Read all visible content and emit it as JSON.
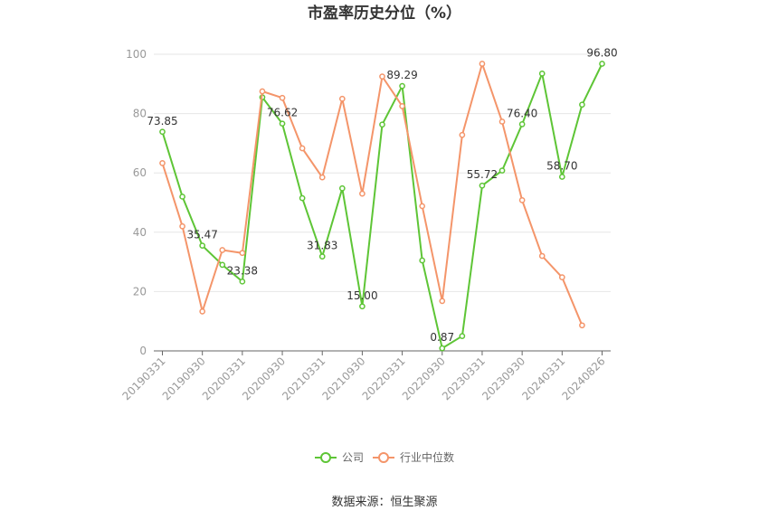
{
  "chart_data": {
    "type": "line",
    "title": "市盈率历史分位（%）",
    "xlabel": "",
    "ylabel": "",
    "ylim": [
      0,
      100
    ],
    "yticks": [
      0,
      20,
      40,
      60,
      80,
      100
    ],
    "x": [
      "20190331",
      "20190630",
      "20190930",
      "20191231",
      "20200331",
      "20200630",
      "20200930",
      "20201231",
      "20210331",
      "20210630",
      "20210930",
      "20211231",
      "20220331",
      "20220630",
      "20220930",
      "20221231",
      "20230331",
      "20230630",
      "20230930",
      "20231231",
      "20240331",
      "20240630",
      "20240826"
    ],
    "xtick_labels": [
      "20190331",
      "20190930",
      "20200331",
      "20200930",
      "20210331",
      "20210930",
      "20220331",
      "20220930",
      "20230331",
      "20230930",
      "20240331",
      "20240826"
    ],
    "series": [
      {
        "name": "公司",
        "color": "#5ec536",
        "values": [
          73.85,
          52,
          35.47,
          29,
          23.38,
          85.5,
          76.62,
          51.5,
          31.83,
          54.8,
          15.0,
          76.3,
          89.29,
          30.5,
          0.87,
          5,
          55.72,
          60.8,
          76.4,
          93.5,
          58.7,
          83,
          96.8
        ],
        "labels": [
          "73.85",
          "",
          "35.47",
          "",
          "23.38",
          "",
          "76.62",
          "",
          "31.83",
          "",
          "15.00",
          "",
          "89.29",
          "",
          "0.87",
          "",
          "55.72",
          "",
          "76.40",
          "",
          "58.70",
          "",
          "96.80"
        ]
      },
      {
        "name": "行业中位数",
        "color": "#f4956a",
        "values": [
          63.3,
          42,
          13.3,
          34,
          33,
          87.5,
          85.3,
          68.3,
          58.5,
          85,
          53,
          92.5,
          82.5,
          48.8,
          16.8,
          72.8,
          96.8,
          77.3,
          50.8,
          32,
          24.8,
          8.6,
          null
        ],
        "labels": []
      }
    ],
    "legend": {
      "position": "bottom",
      "items": [
        "公司",
        "行业中位数"
      ]
    },
    "grid": true
  },
  "footer": {
    "source": "数据来源：恒生聚源"
  }
}
